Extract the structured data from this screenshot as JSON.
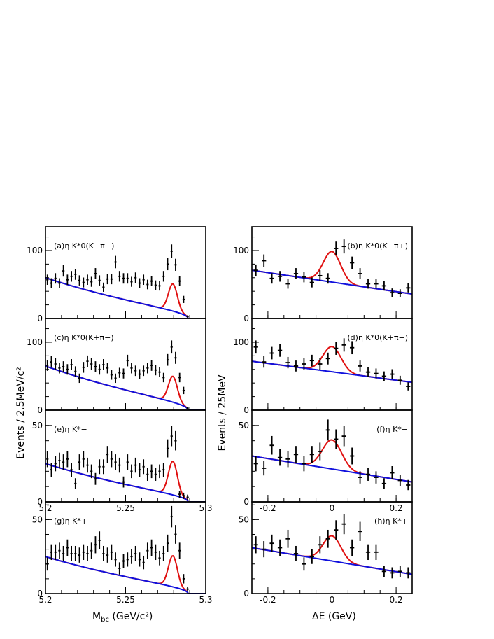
{
  "colors": {
    "total_fit": "#e01010",
    "background_fit": "#1010dd",
    "data": "#000000"
  },
  "axes": {
    "left_x_title": "M",
    "left_x_title_sub": "bc",
    "left_x_title_unit": " (GeV/c²)",
    "right_x_title": "ΔE (GeV)",
    "left_y_title": "Events / 2.5MeV/c²",
    "right_y_title": "Events / 25MeV",
    "left_tick_labels": [
      "5.2",
      "5.25",
      "5.3"
    ],
    "right_tick_labels": [
      "-0.2",
      "0",
      "0.2"
    ]
  },
  "chart_data": [
    {
      "type": "scatter",
      "label": "(a)η K*0(K−π+)",
      "xlabel": "M_bc (GeV/c²)",
      "xlim": [
        5.2,
        5.3
      ],
      "ylim": [
        0,
        135
      ],
      "yticks": [
        0,
        100
      ],
      "x": [
        5.2012,
        5.2037,
        5.2062,
        5.2087,
        5.2112,
        5.2137,
        5.2162,
        5.2187,
        5.2212,
        5.2237,
        5.2262,
        5.2287,
        5.2312,
        5.2337,
        5.2362,
        5.2387,
        5.2412,
        5.2437,
        5.2462,
        5.2487,
        5.2512,
        5.2537,
        5.2562,
        5.2587,
        5.2612,
        5.2637,
        5.2662,
        5.2687,
        5.2712,
        5.2737,
        5.2762,
        5.2787,
        5.2812,
        5.2837,
        5.2862,
        5.2887
      ],
      "y": [
        57,
        52,
        59,
        52,
        70,
        57,
        62,
        65,
        56,
        53,
        57,
        54,
        66,
        56,
        46,
        58,
        58,
        83,
        62,
        59,
        59,
        54,
        60,
        52,
        57,
        50,
        55,
        49,
        48,
        62,
        80,
        99,
        79,
        55,
        28,
        3
      ],
      "fit": {
        "signal_mean": 5.2795,
        "signal_width": 0.0028,
        "signal_height": 40,
        "background_norm": 60,
        "endpoint": 5.289
      }
    },
    {
      "type": "scatter",
      "label": "(b)η K*0(K−π+)",
      "xlabel": "ΔE (GeV)",
      "xlim": [
        -0.25,
        0.25
      ],
      "ylim": [
        0,
        135
      ],
      "yticks": [
        0,
        100
      ],
      "x": [
        -0.2375,
        -0.2125,
        -0.1875,
        -0.1625,
        -0.1375,
        -0.1125,
        -0.0875,
        -0.0625,
        -0.0375,
        -0.0125,
        0.0125,
        0.0375,
        0.0625,
        0.0875,
        0.1125,
        0.1375,
        0.1625,
        0.1875,
        0.2125,
        0.2375
      ],
      "y": [
        71,
        85,
        59,
        62,
        51,
        66,
        61,
        53,
        63,
        59,
        103,
        106,
        82,
        66,
        51,
        51,
        48,
        38,
        37,
        45
      ],
      "fit": {
        "signal_mean": 0.0,
        "signal_width": 0.027,
        "signal_height": 45,
        "background_start": 71,
        "background_slope": -70
      }
    },
    {
      "type": "scatter",
      "label": "(c)η K*0(K+π−)",
      "xlabel": "M_bc (GeV/c²)",
      "xlim": [
        5.2,
        5.3
      ],
      "ylim": [
        0,
        135
      ],
      "yticks": [
        0,
        100
      ],
      "x": [
        5.2012,
        5.2037,
        5.2062,
        5.2087,
        5.2112,
        5.2137,
        5.2162,
        5.2187,
        5.2212,
        5.2237,
        5.2262,
        5.2287,
        5.2312,
        5.2337,
        5.2362,
        5.2387,
        5.2412,
        5.2437,
        5.2462,
        5.2487,
        5.2512,
        5.2537,
        5.2562,
        5.2587,
        5.2612,
        5.2637,
        5.2662,
        5.2687,
        5.2712,
        5.2737,
        5.2762,
        5.2787,
        5.2812,
        5.2837,
        5.2862,
        5.2887
      ],
      "y": [
        66,
        71,
        68,
        62,
        64,
        60,
        67,
        57,
        47,
        63,
        72,
        68,
        64,
        60,
        67,
        62,
        52,
        47,
        55,
        54,
        73,
        62,
        58,
        53,
        58,
        62,
        66,
        59,
        56,
        48,
        74,
        93,
        77,
        48,
        29,
        3
      ],
      "fit": {
        "signal_mean": 5.2795,
        "signal_width": 0.0028,
        "signal_height": 38,
        "background_norm": 65,
        "endpoint": 5.289
      }
    },
    {
      "type": "scatter",
      "label": "(d)η K*0(K+π−)",
      "xlabel": "ΔE (GeV)",
      "xlim": [
        -0.25,
        0.25
      ],
      "ylim": [
        0,
        135
      ],
      "yticks": [
        0,
        100
      ],
      "x": [
        -0.2375,
        -0.2125,
        -0.1875,
        -0.1625,
        -0.1375,
        -0.1125,
        -0.0875,
        -0.0625,
        -0.0375,
        -0.0125,
        0.0125,
        0.0375,
        0.0625,
        0.0875,
        0.1125,
        0.1375,
        0.1625,
        0.1875,
        0.2125,
        0.2375
      ],
      "y": [
        93,
        71,
        84,
        88,
        70,
        65,
        68,
        73,
        68,
        76,
        91,
        96,
        92,
        65,
        56,
        54,
        50,
        53,
        44,
        35
      ],
      "fit": {
        "signal_mean": 0.0,
        "signal_width": 0.028,
        "signal_height": 37,
        "background_start": 72,
        "background_slope": -62
      }
    },
    {
      "type": "scatter",
      "label": "(e)η K*−",
      "xlabel": "M_bc (GeV/c²)",
      "xlim": [
        5.2,
        5.3
      ],
      "ylim": [
        0,
        60
      ],
      "yticks": [
        0,
        50
      ],
      "x": [
        5.2012,
        5.2037,
        5.2062,
        5.2087,
        5.2112,
        5.2137,
        5.2162,
        5.2187,
        5.2212,
        5.2237,
        5.2262,
        5.2287,
        5.2312,
        5.2337,
        5.2362,
        5.2387,
        5.2412,
        5.2437,
        5.2462,
        5.2487,
        5.2512,
        5.2537,
        5.2562,
        5.2587,
        5.2612,
        5.2637,
        5.2662,
        5.2687,
        5.2712,
        5.2737,
        5.2762,
        5.2787,
        5.2812,
        5.2837,
        5.2862,
        5.2887
      ],
      "y": [
        28,
        21,
        25,
        27,
        26,
        28,
        21,
        12,
        26,
        28,
        24,
        20,
        15,
        23,
        23,
        31,
        28,
        26,
        24,
        13,
        26,
        20,
        24,
        21,
        23,
        18,
        20,
        18,
        20,
        21,
        35,
        43,
        40,
        5,
        4,
        3
      ],
      "fit": {
        "signal_mean": 5.2795,
        "signal_width": 0.0028,
        "signal_height": 22,
        "background_norm": 25,
        "endpoint": 5.289
      }
    },
    {
      "type": "scatter",
      "label": "(f)η K*−",
      "xlabel": "ΔE (GeV)",
      "xlim": [
        -0.25,
        0.25
      ],
      "ylim": [
        0,
        60
      ],
      "yticks": [
        0,
        50
      ],
      "x": [
        -0.2375,
        -0.2125,
        -0.1875,
        -0.1625,
        -0.1375,
        -0.1125,
        -0.0875,
        -0.0625,
        -0.0375,
        -0.0125,
        0.0125,
        0.0375,
        0.0625,
        0.0875,
        0.1125,
        0.1375,
        0.1625,
        0.1875,
        0.2125,
        0.2375
      ],
      "y": [
        25,
        22,
        37,
        29,
        28,
        31,
        25,
        31,
        33,
        47,
        41,
        43,
        30,
        16,
        18,
        16,
        12,
        19,
        14,
        11
      ],
      "fit": {
        "signal_mean": 0.0,
        "signal_width": 0.03,
        "signal_height": 19,
        "background_start": 30,
        "background_slope": -34
      }
    },
    {
      "type": "scatter",
      "label": "(g)η K*+",
      "xlabel": "M_bc (GeV/c²)",
      "xlim": [
        5.2,
        5.3
      ],
      "ylim": [
        0,
        62
      ],
      "yticks": [
        0,
        50
      ],
      "x": [
        5.2012,
        5.2037,
        5.2062,
        5.2087,
        5.2112,
        5.2137,
        5.2162,
        5.2187,
        5.2212,
        5.2237,
        5.2262,
        5.2287,
        5.2312,
        5.2337,
        5.2362,
        5.2387,
        5.2412,
        5.2437,
        5.2462,
        5.2487,
        5.2512,
        5.2537,
        5.2562,
        5.2587,
        5.2612,
        5.2637,
        5.2662,
        5.2687,
        5.2712,
        5.2737,
        5.2762,
        5.2787,
        5.2812,
        5.2837,
        5.2862,
        5.2887
      ],
      "y": [
        20,
        28,
        28,
        29,
        27,
        31,
        27,
        27,
        26,
        28,
        27,
        29,
        33,
        36,
        27,
        26,
        28,
        23,
        17,
        22,
        23,
        25,
        27,
        23,
        21,
        29,
        31,
        28,
        24,
        27,
        34,
        52,
        40,
        29,
        10,
        3
      ],
      "fit": {
        "signal_mean": 5.2795,
        "signal_width": 0.0028,
        "signal_height": 21,
        "background_norm": 25,
        "endpoint": 5.289
      }
    },
    {
      "type": "scatter",
      "label": "(h)η K*+",
      "xlabel": "ΔE (GeV)",
      "xlim": [
        -0.25,
        0.25
      ],
      "ylim": [
        0,
        62
      ],
      "yticks": [
        0,
        50
      ],
      "x": [
        -0.2375,
        -0.2125,
        -0.1875,
        -0.1625,
        -0.1375,
        -0.1125,
        -0.0875,
        -0.0625,
        -0.0375,
        -0.0125,
        0.0125,
        0.0375,
        0.0625,
        0.0875,
        0.1125,
        0.1375,
        0.1625,
        0.1875,
        0.2125,
        0.2375
      ],
      "y": [
        33,
        30,
        34,
        31,
        37,
        27,
        20,
        25,
        33,
        37,
        43,
        47,
        31,
        42,
        28,
        28,
        15,
        14,
        15,
        14
      ],
      "fit": {
        "signal_mean": 0.0,
        "signal_width": 0.028,
        "signal_height": 17,
        "background_start": 31,
        "background_slope": -36
      }
    }
  ]
}
